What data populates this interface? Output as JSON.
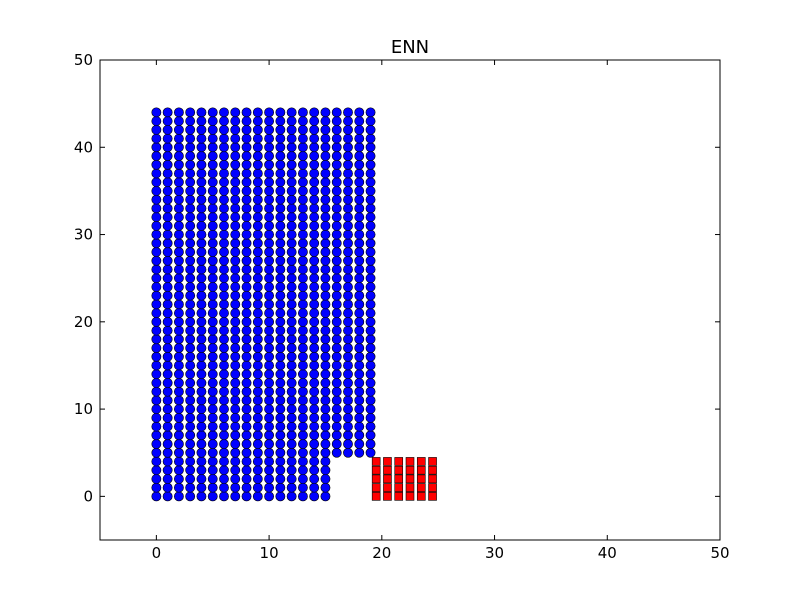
{
  "chart_data": {
    "type": "scatter",
    "title": "ENN",
    "xlabel": "",
    "ylabel": "",
    "xlim": [
      -5,
      50
    ],
    "ylim": [
      -5,
      50
    ],
    "xticks": [
      0,
      10,
      20,
      30,
      40,
      50
    ],
    "yticks": [
      0,
      10,
      20,
      30,
      40,
      50
    ],
    "xtick_labels": [
      "0",
      "10",
      "20",
      "30",
      "40",
      "50"
    ],
    "ytick_labels": [
      "0",
      "10",
      "20",
      "30",
      "40",
      "50"
    ],
    "grid": false,
    "series": [
      {
        "marker": "circle",
        "color": "#0000ff",
        "groups": [
          {
            "x_start": 0,
            "x_end": 15,
            "x_step": 1,
            "y_start": 0,
            "y_end": 44,
            "y_step": 1
          },
          {
            "x_start": 16,
            "x_end": 19,
            "x_step": 1,
            "y_start": 5,
            "y_end": 44,
            "y_step": 1
          }
        ]
      },
      {
        "marker": "square",
        "color": "#ff0000",
        "groups": [
          {
            "x_start": 19.5,
            "x_end": 24.5,
            "x_step": 1,
            "y_start": 0,
            "y_end": 4,
            "y_step": 1
          }
        ]
      }
    ]
  }
}
